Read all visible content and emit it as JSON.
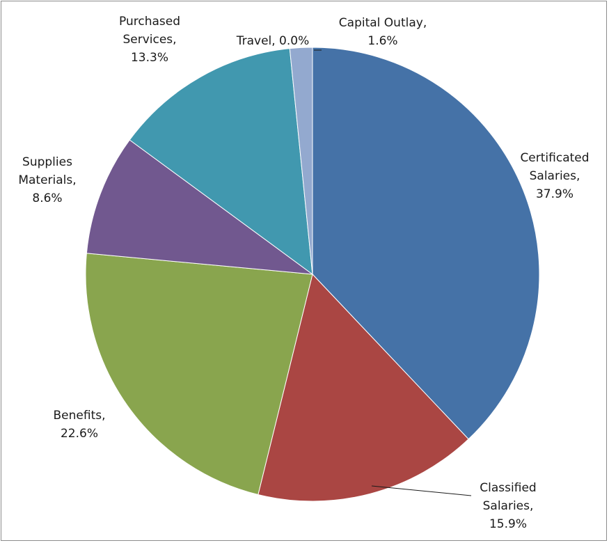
{
  "chart_data": {
    "type": "pie",
    "title": "",
    "start_angle_deg": 0,
    "direction": "clockwise",
    "slices": [
      {
        "name": "Certificated Salaries",
        "value": 37.9,
        "label_lines": [
          "Certificated",
          "Salaries,",
          "37.9%"
        ],
        "color": "#4572a7"
      },
      {
        "name": "Classified Salaries",
        "value": 15.9,
        "label_lines": [
          "Classified",
          "Salaries,",
          "15.9%"
        ],
        "color": "#aa4643"
      },
      {
        "name": "Benefits",
        "value": 22.6,
        "label_lines": [
          "Benefits,",
          "22.6%"
        ],
        "color": "#89a54e"
      },
      {
        "name": "Supplies Materials",
        "value": 8.6,
        "label_lines": [
          "Supplies",
          "Materials,",
          "8.6%"
        ],
        "color": "#71588f"
      },
      {
        "name": "Purchased Services",
        "value": 13.3,
        "label_lines": [
          "Purchased",
          "Services,",
          "13.3%"
        ],
        "color": "#4198af"
      },
      {
        "name": "Travel",
        "value": 0.0,
        "label_lines": [
          "Travel, 0.0%"
        ],
        "color": "#db843d"
      },
      {
        "name": "Capital Outlay",
        "value": 1.6,
        "label_lines": [
          "Capital Outlay,",
          "1.6%"
        ],
        "color": "#93a9cf"
      }
    ]
  }
}
